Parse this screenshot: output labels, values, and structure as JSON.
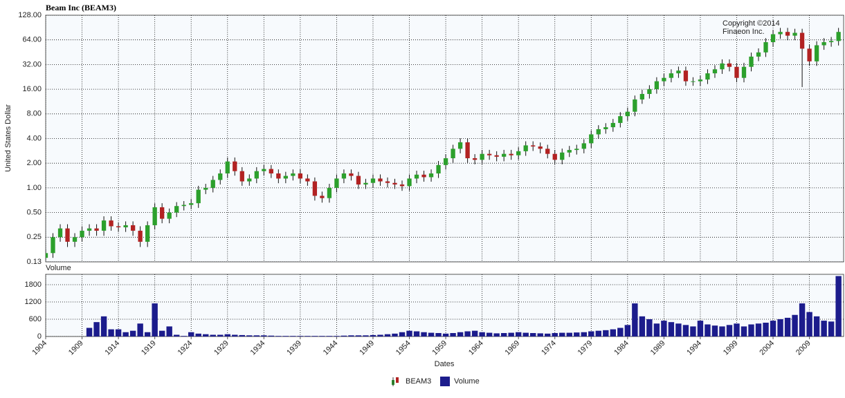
{
  "chart_data": [
    {
      "type": "candlestick",
      "title": "Beam Inc (BEAM3)",
      "name": "BEAM3",
      "y_label": "United States Dollar",
      "annotations": [
        "Copyright ©2014",
        "Finaeon Inc."
      ],
      "up_color": "#2ca02c",
      "down_color": "#b22222",
      "log_scale": true,
      "grid": true,
      "x": [
        1904,
        1905,
        1906,
        1907,
        1908,
        1909,
        1910,
        1911,
        1912,
        1913,
        1914,
        1915,
        1916,
        1917,
        1918,
        1919,
        1920,
        1921,
        1922,
        1923,
        1924,
        1925,
        1926,
        1927,
        1928,
        1929,
        1930,
        1931,
        1932,
        1933,
        1934,
        1935,
        1936,
        1937,
        1938,
        1939,
        1940,
        1941,
        1942,
        1943,
        1944,
        1945,
        1946,
        1947,
        1948,
        1949,
        1950,
        1951,
        1952,
        1953,
        1954,
        1955,
        1956,
        1957,
        1958,
        1959,
        1960,
        1961,
        1962,
        1963,
        1964,
        1965,
        1966,
        1967,
        1968,
        1969,
        1970,
        1971,
        1972,
        1973,
        1974,
        1975,
        1976,
        1977,
        1978,
        1979,
        1980,
        1981,
        1982,
        1983,
        1984,
        1985,
        1986,
        1987,
        1988,
        1989,
        1990,
        1991,
        1992,
        1993,
        1994,
        1995,
        1996,
        1997,
        1998,
        1999,
        2000,
        2001,
        2002,
        2003,
        2004,
        2005,
        2006,
        2007,
        2008,
        2009,
        2010,
        2011,
        2012,
        2013
      ],
      "open": [
        0.14,
        0.16,
        0.25,
        0.32,
        0.22,
        0.25,
        0.3,
        0.32,
        0.3,
        0.4,
        0.34,
        0.33,
        0.35,
        0.3,
        0.22,
        0.35,
        0.58,
        0.42,
        0.5,
        0.6,
        0.62,
        0.65,
        0.95,
        1.0,
        1.25,
        1.5,
        2.1,
        1.6,
        1.2,
        1.3,
        1.6,
        1.7,
        1.5,
        1.3,
        1.4,
        1.5,
        1.3,
        1.2,
        0.8,
        0.75,
        1.0,
        1.3,
        1.5,
        1.4,
        1.1,
        1.15,
        1.3,
        1.2,
        1.15,
        1.1,
        1.05,
        1.3,
        1.45,
        1.35,
        1.5,
        1.9,
        2.3,
        3.0,
        3.6,
        2.3,
        2.2,
        2.6,
        2.5,
        2.4,
        2.6,
        2.5,
        2.8,
        3.3,
        3.2,
        3.0,
        2.6,
        2.2,
        2.7,
        2.9,
        3.0,
        3.5,
        4.5,
        5.2,
        5.5,
        6.2,
        7.5,
        8.5,
        12,
        14,
        16,
        20,
        22,
        25,
        27,
        20,
        20,
        21,
        25,
        28,
        33,
        30,
        22,
        30,
        40,
        45,
        60,
        75,
        80,
        72,
        78,
        50,
        35,
        55,
        60,
        62
      ],
      "high": [
        0.18,
        0.28,
        0.36,
        0.36,
        0.28,
        0.34,
        0.36,
        0.36,
        0.45,
        0.45,
        0.38,
        0.39,
        0.39,
        0.34,
        0.39,
        0.65,
        0.65,
        0.56,
        0.67,
        0.69,
        0.73,
        1.06,
        1.12,
        1.4,
        1.68,
        2.35,
        2.35,
        1.79,
        1.46,
        1.79,
        1.9,
        1.9,
        1.68,
        1.57,
        1.68,
        1.68,
        1.46,
        1.34,
        0.9,
        1.12,
        1.46,
        1.68,
        1.68,
        1.57,
        1.29,
        1.46,
        1.46,
        1.34,
        1.29,
        1.23,
        1.46,
        1.62,
        1.62,
        1.68,
        2.13,
        2.58,
        3.36,
        4.03,
        4.03,
        2.58,
        2.91,
        2.91,
        2.8,
        2.91,
        2.91,
        3.14,
        3.7,
        3.7,
        3.58,
        3.36,
        2.91,
        3.02,
        3.25,
        3.36,
        3.92,
        5.04,
        5.82,
        6.16,
        6.94,
        8.4,
        9.52,
        13.4,
        15.7,
        17.9,
        22.4,
        24.6,
        28,
        30.2,
        30.2,
        22.4,
        23.5,
        28,
        31.4,
        37,
        37,
        33.6,
        33.6,
        44.8,
        50.4,
        67.2,
        84,
        89.6,
        89.6,
        87.4,
        87.4,
        56,
        61.6,
        67.2,
        69.4,
        89.6
      ],
      "low": [
        0.13,
        0.14,
        0.22,
        0.19,
        0.19,
        0.22,
        0.26,
        0.26,
        0.26,
        0.3,
        0.29,
        0.29,
        0.26,
        0.19,
        0.19,
        0.31,
        0.37,
        0.37,
        0.44,
        0.53,
        0.55,
        0.57,
        0.84,
        0.88,
        1.1,
        1.32,
        1.41,
        1.06,
        1.06,
        1.14,
        1.41,
        1.32,
        1.14,
        1.14,
        1.23,
        1.14,
        1.06,
        0.7,
        0.66,
        0.66,
        0.88,
        1.14,
        1.23,
        0.97,
        0.97,
        1.01,
        1.06,
        1.01,
        0.97,
        0.92,
        0.92,
        1.14,
        1.19,
        1.19,
        1.32,
        1.67,
        2.02,
        2.64,
        2.02,
        1.94,
        1.94,
        2.2,
        2.11,
        2.11,
        2.2,
        2.2,
        2.46,
        2.82,
        2.64,
        2.29,
        1.94,
        1.94,
        2.38,
        2.55,
        2.64,
        3.08,
        3.96,
        4.58,
        4.84,
        5.46,
        6.6,
        7.48,
        10.6,
        12.3,
        14.1,
        17.6,
        19.4,
        22,
        17.6,
        17.6,
        17.6,
        18.5,
        22,
        24.6,
        26.4,
        19.4,
        19.4,
        26.4,
        35.2,
        39.6,
        52.8,
        66,
        63.4,
        63.4,
        17,
        30.8,
        30.8,
        48.4,
        52.8,
        54.6
      ],
      "close": [
        0.16,
        0.25,
        0.32,
        0.22,
        0.25,
        0.3,
        0.32,
        0.3,
        0.4,
        0.34,
        0.33,
        0.35,
        0.3,
        0.22,
        0.35,
        0.58,
        0.42,
        0.5,
        0.6,
        0.62,
        0.65,
        0.95,
        1.0,
        1.25,
        1.5,
        2.1,
        1.6,
        1.2,
        1.3,
        1.6,
        1.7,
        1.5,
        1.3,
        1.4,
        1.5,
        1.3,
        1.2,
        0.8,
        0.75,
        1.0,
        1.3,
        1.5,
        1.4,
        1.1,
        1.15,
        1.3,
        1.2,
        1.15,
        1.1,
        1.05,
        1.3,
        1.45,
        1.35,
        1.5,
        1.9,
        2.3,
        3.0,
        3.6,
        2.3,
        2.2,
        2.6,
        2.5,
        2.4,
        2.6,
        2.5,
        2.8,
        3.3,
        3.2,
        3.0,
        2.6,
        2.2,
        2.7,
        2.9,
        3.0,
        3.5,
        4.5,
        5.2,
        5.5,
        6.2,
        7.5,
        8.5,
        12,
        14,
        16,
        20,
        22,
        25,
        27,
        20,
        20,
        21,
        25,
        28,
        33,
        30,
        22,
        30,
        40,
        45,
        60,
        75,
        80,
        72,
        78,
        50,
        35,
        55,
        60,
        62,
        80
      ],
      "xlim": [
        1904,
        2013.7
      ],
      "xticks": [
        1904,
        1909,
        1914,
        1919,
        1924,
        1929,
        1934,
        1939,
        1944,
        1949,
        1954,
        1959,
        1964,
        1969,
        1974,
        1979,
        1984,
        1989,
        1994,
        1999,
        2004,
        2009
      ],
      "ylim": [
        0.125,
        128
      ],
      "yticks": [
        {
          "value": 0.125,
          "label": "0.13"
        },
        {
          "value": 0.25,
          "label": "0.25"
        },
        {
          "value": 0.5,
          "label": "0.50"
        },
        {
          "value": 1,
          "label": "1.00"
        },
        {
          "value": 2,
          "label": "2.00"
        },
        {
          "value": 4,
          "label": "4.00"
        },
        {
          "value": 8,
          "label": "8.00"
        },
        {
          "value": 16,
          "label": "16.00"
        },
        {
          "value": 32,
          "label": "32.00"
        },
        {
          "value": 64,
          "label": "64.00"
        },
        {
          "value": 128,
          "label": "128.00"
        }
      ]
    },
    {
      "type": "bar",
      "title": "Volume",
      "name": "Volume",
      "x_label": "Dates",
      "color": "#1c1c8c",
      "grid": true,
      "x": [
        1904,
        1905,
        1906,
        1907,
        1908,
        1909,
        1910,
        1911,
        1912,
        1913,
        1914,
        1915,
        1916,
        1917,
        1918,
        1919,
        1920,
        1921,
        1922,
        1923,
        1924,
        1925,
        1926,
        1927,
        1928,
        1929,
        1930,
        1931,
        1932,
        1933,
        1934,
        1935,
        1936,
        1937,
        1938,
        1939,
        1940,
        1941,
        1942,
        1943,
        1944,
        1945,
        1946,
        1947,
        1948,
        1949,
        1950,
        1951,
        1952,
        1953,
        1954,
        1955,
        1956,
        1957,
        1958,
        1959,
        1960,
        1961,
        1962,
        1963,
        1964,
        1965,
        1966,
        1967,
        1968,
        1969,
        1970,
        1971,
        1972,
        1973,
        1974,
        1975,
        1976,
        1977,
        1978,
        1979,
        1980,
        1981,
        1982,
        1983,
        1984,
        1985,
        1986,
        1987,
        1988,
        1989,
        1990,
        1991,
        1992,
        1993,
        1994,
        1995,
        1996,
        1997,
        1998,
        1999,
        2000,
        2001,
        2002,
        2003,
        2004,
        2005,
        2006,
        2007,
        2008,
        2009,
        2010,
        2011,
        2012,
        2013
      ],
      "values": [
        0,
        0,
        0,
        0,
        0,
        0,
        300,
        500,
        700,
        250,
        250,
        150,
        200,
        450,
        150,
        1150,
        200,
        350,
        60,
        20,
        150,
        100,
        80,
        60,
        60,
        80,
        60,
        50,
        40,
        40,
        40,
        30,
        20,
        20,
        20,
        20,
        20,
        20,
        20,
        20,
        20,
        30,
        40,
        40,
        40,
        50,
        60,
        80,
        100,
        150,
        200,
        180,
        150,
        130,
        120,
        100,
        120,
        150,
        180,
        200,
        150,
        130,
        110,
        120,
        130,
        150,
        130,
        120,
        110,
        100,
        120,
        130,
        130,
        140,
        150,
        180,
        200,
        220,
        250,
        300,
        400,
        1150,
        700,
        600,
        450,
        550,
        500,
        450,
        400,
        350,
        550,
        420,
        380,
        350,
        400,
        450,
        350,
        420,
        450,
        480,
        550,
        600,
        650,
        750,
        1150,
        850,
        700,
        550,
        520,
        2100
      ],
      "xlim": [
        1904,
        2013.7
      ],
      "xticks": [
        1904,
        1909,
        1914,
        1919,
        1924,
        1929,
        1934,
        1939,
        1944,
        1949,
        1954,
        1959,
        1964,
        1969,
        1974,
        1979,
        1984,
        1989,
        1994,
        1999,
        2004,
        2009
      ],
      "ylim": [
        0,
        2160
      ],
      "yticks": [
        0,
        600,
        1200,
        1800
      ]
    }
  ]
}
